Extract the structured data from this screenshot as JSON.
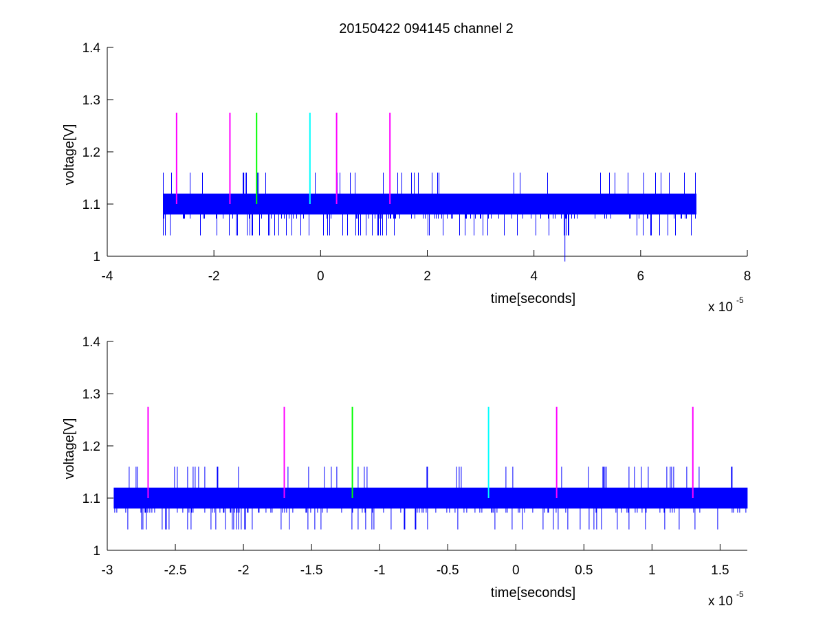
{
  "figure_title": "20150422 094145 channel 2",
  "colors": {
    "signal": "#0000ff",
    "marker_magenta": "#ff00ff",
    "marker_green": "#00ff00",
    "marker_cyan": "#00ffff",
    "axis": "#000000"
  },
  "chart_data": [
    {
      "type": "line",
      "title": "20150422 094145 channel 2",
      "xlabel": "time[seconds]",
      "ylabel": "voltage[V]",
      "x_exponent_label": "x 10",
      "x_exponent_sup": "-5",
      "xlim": [
        -4,
        8
      ],
      "ylim": [
        1,
        1.4
      ],
      "xticks": [
        -4,
        -2,
        0,
        2,
        4,
        6,
        8
      ],
      "xtick_labels": [
        "-4",
        "-2",
        "0",
        "2",
        "4",
        "6",
        "8"
      ],
      "yticks": [
        1,
        1.1,
        1.2,
        1.3,
        1.4
      ],
      "ytick_labels": [
        "1",
        "1.1",
        "1.2",
        "1.3",
        "1.4"
      ],
      "series": [
        {
          "kind": "noisy-band",
          "color": "#0000ff",
          "x_range": [
            -2.95,
            7.05
          ],
          "band": [
            1.08,
            1.12
          ],
          "spike_high": 1.16,
          "spike_low": 1.04,
          "outlier_x": 4.58,
          "outlier_low": 0.99
        }
      ],
      "markers": [
        {
          "x": -2.7,
          "y_from": 1.1,
          "y_to": 1.275,
          "color": "#ff00ff"
        },
        {
          "x": -1.7,
          "y_from": 1.1,
          "y_to": 1.275,
          "color": "#ff00ff"
        },
        {
          "x": -1.2,
          "y_from": 1.1,
          "y_to": 1.275,
          "color": "#00ff00"
        },
        {
          "x": -0.2,
          "y_from": 1.1,
          "y_to": 1.275,
          "color": "#00ffff"
        },
        {
          "x": 0.3,
          "y_from": 1.1,
          "y_to": 1.275,
          "color": "#ff00ff"
        },
        {
          "x": 1.3,
          "y_from": 1.1,
          "y_to": 1.275,
          "color": "#ff00ff"
        }
      ]
    },
    {
      "type": "line",
      "title": "",
      "xlabel": "time[seconds]",
      "ylabel": "voltage[V]",
      "x_exponent_label": "x 10",
      "x_exponent_sup": "-5",
      "xlim": [
        -3,
        1.7
      ],
      "ylim": [
        1,
        1.4
      ],
      "xticks": [
        -3,
        -2.5,
        -2,
        -1.5,
        -1,
        -0.5,
        0,
        0.5,
        1,
        1.5
      ],
      "xtick_labels": [
        "-3",
        "-2.5",
        "-2",
        "-1.5",
        "-1",
        "-0.5",
        "0",
        "0.5",
        "1",
        "1.5"
      ],
      "yticks": [
        1,
        1.1,
        1.2,
        1.3,
        1.4
      ],
      "ytick_labels": [
        "1",
        "1.1",
        "1.2",
        "1.3",
        "1.4"
      ],
      "series": [
        {
          "kind": "noisy-band",
          "color": "#0000ff",
          "x_range": [
            -2.95,
            1.7
          ],
          "band": [
            1.08,
            1.12
          ],
          "spike_high": 1.16,
          "spike_low": 1.04
        }
      ],
      "markers": [
        {
          "x": -2.7,
          "y_from": 1.1,
          "y_to": 1.275,
          "color": "#ff00ff"
        },
        {
          "x": -1.7,
          "y_from": 1.1,
          "y_to": 1.275,
          "color": "#ff00ff"
        },
        {
          "x": -1.2,
          "y_from": 1.1,
          "y_to": 1.275,
          "color": "#00ff00"
        },
        {
          "x": -0.2,
          "y_from": 1.1,
          "y_to": 1.275,
          "color": "#00ffff"
        },
        {
          "x": 0.3,
          "y_from": 1.1,
          "y_to": 1.275,
          "color": "#ff00ff"
        },
        {
          "x": 1.3,
          "y_from": 1.1,
          "y_to": 1.275,
          "color": "#ff00ff"
        }
      ]
    }
  ]
}
